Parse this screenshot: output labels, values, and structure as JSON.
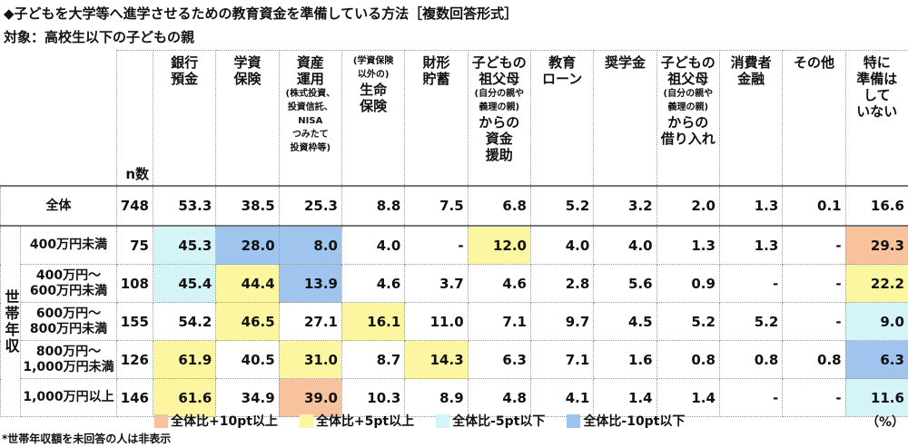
{
  "title": "◆子どもを大学等へ進学させるための教育資金を準備している方法［複数回答形式］",
  "subtitle": "対象：高校生以下の子どもの親",
  "table": {
    "n_header": "n数",
    "group_label": "世帯年収",
    "columns": [
      {
        "lines": [
          "銀行",
          "預金"
        ]
      },
      {
        "lines": [
          "学資",
          "保険"
        ]
      },
      {
        "lines": [
          "資産",
          "運用",
          {
            "note": "(株式投資、"
          },
          {
            "note": "投資信託、"
          },
          {
            "note": "NISA"
          },
          {
            "note": "つみたて"
          },
          {
            "note": "投資枠等)"
          }
        ]
      },
      {
        "lines": [
          {
            "note": "(学資保険"
          },
          {
            "note": "以外の)"
          },
          "生命",
          "保険"
        ]
      },
      {
        "lines": [
          "財形",
          "貯蓄"
        ]
      },
      {
        "lines": [
          "子どもの",
          "祖父母",
          {
            "note": "(自分の親や"
          },
          {
            "note": "義理の親)"
          },
          "からの",
          "資金",
          "援助"
        ]
      },
      {
        "lines": [
          "教育",
          "ローン"
        ]
      },
      {
        "lines": [
          "奨学金"
        ]
      },
      {
        "lines": [
          "子どもの",
          "祖父母",
          {
            "note": "(自分の親や"
          },
          {
            "note": "義理の親)"
          },
          "からの",
          "借り入れ"
        ]
      },
      {
        "lines": [
          "消費者",
          "金融"
        ]
      },
      {
        "lines": [
          "その他"
        ]
      },
      {
        "lines": [
          "特に",
          "準備は",
          "して",
          "いない"
        ]
      }
    ],
    "total": {
      "label": [
        "全体"
      ],
      "n": "748",
      "values": [
        "53.3",
        "38.5",
        "25.3",
        "8.8",
        "7.5",
        "6.8",
        "5.2",
        "3.2",
        "2.0",
        "1.3",
        "0.1",
        "16.6"
      ]
    },
    "rows": [
      {
        "label": [
          "400万円未満"
        ],
        "n": "75",
        "values": [
          "45.3",
          "28.0",
          "8.0",
          "4.0",
          "-",
          "12.0",
          "4.0",
          "4.0",
          "1.3",
          "1.3",
          "-",
          "29.3"
        ],
        "highlight": [
          2,
          3,
          3,
          null,
          null,
          1,
          null,
          null,
          null,
          null,
          null,
          0
        ]
      },
      {
        "label": [
          "400万円～",
          "600万円未満"
        ],
        "n": "108",
        "values": [
          "45.4",
          "44.4",
          "13.9",
          "4.6",
          "3.7",
          "4.6",
          "2.8",
          "5.6",
          "0.9",
          "-",
          "-",
          "22.2"
        ],
        "highlight": [
          2,
          1,
          3,
          null,
          null,
          null,
          null,
          null,
          null,
          null,
          null,
          1
        ]
      },
      {
        "label": [
          "600万円～",
          "800万円未満"
        ],
        "n": "155",
        "values": [
          "54.2",
          "46.5",
          "27.1",
          "16.1",
          "11.0",
          "7.1",
          "9.7",
          "4.5",
          "5.2",
          "5.2",
          "-",
          "9.0"
        ],
        "highlight": [
          null,
          1,
          null,
          1,
          null,
          null,
          null,
          null,
          null,
          null,
          null,
          2
        ]
      },
      {
        "label": [
          "800万円～",
          "1,000万円未満"
        ],
        "n": "126",
        "values": [
          "61.9",
          "40.5",
          "31.0",
          "8.7",
          "14.3",
          "6.3",
          "7.1",
          "1.6",
          "0.8",
          "0.8",
          "0.8",
          "6.3"
        ],
        "highlight": [
          1,
          null,
          1,
          null,
          1,
          null,
          null,
          null,
          null,
          null,
          null,
          3
        ]
      },
      {
        "label": [
          "1,000万円以上"
        ],
        "n": "146",
        "values": [
          "61.6",
          "34.9",
          "39.0",
          "10.3",
          "8.9",
          "4.8",
          "4.1",
          "1.4",
          "1.4",
          "-",
          "-",
          "11.6"
        ],
        "highlight": [
          1,
          null,
          0,
          null,
          null,
          null,
          null,
          null,
          null,
          null,
          null,
          2
        ]
      }
    ]
  },
  "legend": [
    {
      "label": "全体比+10pt以上",
      "color": "#f8c29c"
    },
    {
      "label": "全体比+5pt以上",
      "color": "#fdf6a0"
    },
    {
      "label": "全体比-5pt以下",
      "color": "#d4f4f7"
    },
    {
      "label": "全体比-10pt以下",
      "color": "#9fc4ee"
    }
  ],
  "unit": "（%）",
  "footnote": "*世帯年収額を未回答の人は非表示"
}
